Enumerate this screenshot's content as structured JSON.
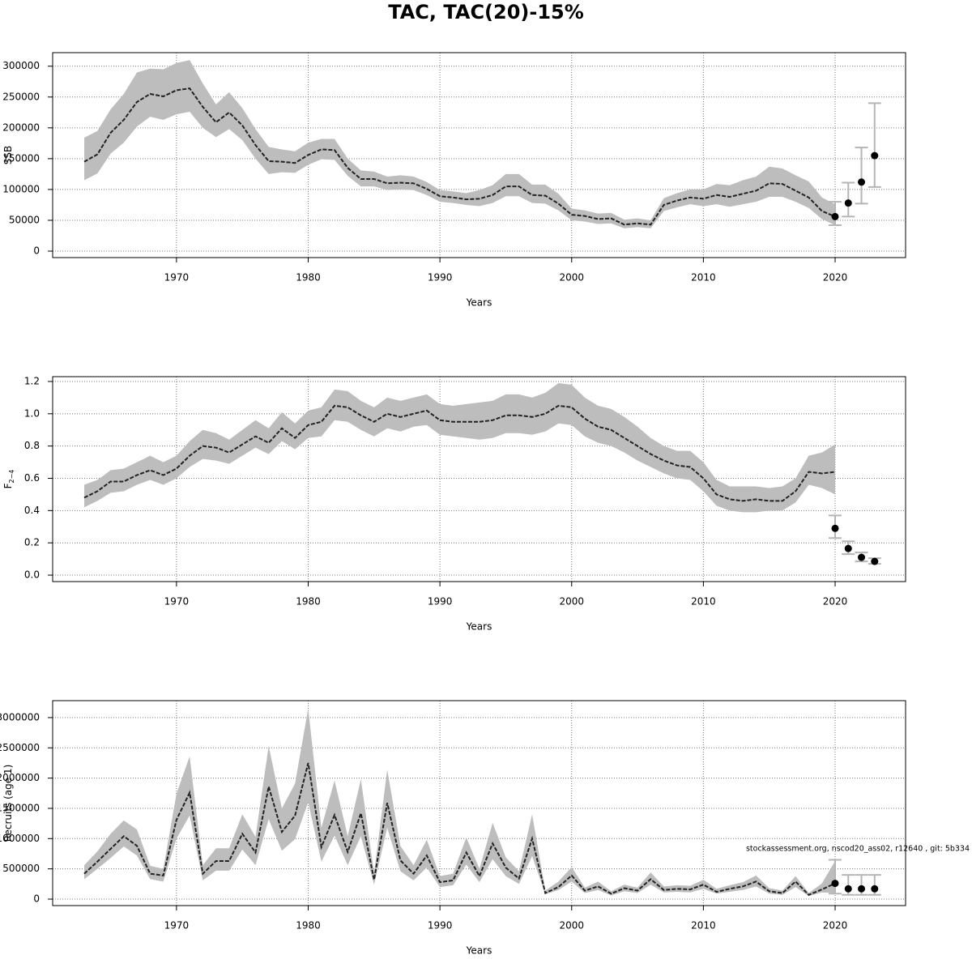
{
  "title": "TAC, TAC(20)-15%",
  "footnote": "stockassessment.org, nscod20_ass02, r12640 , git: 5b334",
  "chart_data": [
    {
      "type": "line",
      "ylabel": "SSB",
      "xlabel": "Years",
      "x": [
        1963,
        1964,
        1965,
        1966,
        1967,
        1968,
        1969,
        1970,
        1971,
        1972,
        1973,
        1974,
        1975,
        1976,
        1977,
        1978,
        1979,
        1980,
        1981,
        1982,
        1983,
        1984,
        1985,
        1986,
        1987,
        1988,
        1989,
        1990,
        1991,
        1992,
        1993,
        1994,
        1995,
        1996,
        1997,
        1998,
        1999,
        2000,
        2001,
        2002,
        2003,
        2004,
        2005,
        2006,
        2007,
        2008,
        2009,
        2010,
        2011,
        2012,
        2013,
        2014,
        2015,
        2016,
        2017,
        2018,
        2019,
        2020
      ],
      "values": [
        145000,
        157000,
        192000,
        213000,
        242000,
        255000,
        251000,
        261000,
        264000,
        234000,
        209000,
        225000,
        204000,
        172000,
        146000,
        145000,
        143000,
        156000,
        165000,
        164000,
        135000,
        117000,
        117000,
        110000,
        111000,
        110000,
        101000,
        89000,
        87000,
        84000,
        85000,
        91000,
        105000,
        105000,
        91000,
        90000,
        77000,
        59000,
        57000,
        52000,
        53000,
        43000,
        45000,
        43000,
        75000,
        82000,
        87000,
        85000,
        91000,
        88000,
        93000,
        98000,
        110000,
        109000,
        98000,
        87000,
        65000,
        56000
      ],
      "lower": [
        115000,
        126000,
        158000,
        176000,
        202000,
        218000,
        213000,
        222000,
        226000,
        200000,
        185000,
        198000,
        180000,
        150000,
        125000,
        128000,
        127000,
        140000,
        149000,
        148000,
        122000,
        105000,
        105000,
        99000,
        100000,
        99000,
        91000,
        80000,
        78000,
        75000,
        73000,
        78000,
        89000,
        89000,
        78000,
        77000,
        66000,
        50000,
        48000,
        44000,
        45000,
        37000,
        39000,
        37000,
        65000,
        71000,
        76000,
        73000,
        76000,
        72000,
        76000,
        80000,
        88000,
        88000,
        80000,
        70000,
        52000,
        42000
      ],
      "upper": [
        184000,
        195000,
        230000,
        255000,
        290000,
        296000,
        295000,
        305000,
        310000,
        272000,
        238000,
        258000,
        232000,
        198000,
        169000,
        165000,
        162000,
        176000,
        182000,
        182000,
        150000,
        131000,
        129000,
        121000,
        123000,
        121000,
        112000,
        99000,
        97000,
        94000,
        99000,
        107000,
        125000,
        125000,
        108000,
        108000,
        93000,
        69000,
        66000,
        61000,
        62000,
        51000,
        53000,
        50000,
        86000,
        94000,
        100000,
        100000,
        109000,
        107000,
        115000,
        121000,
        137000,
        134000,
        123000,
        113000,
        87000,
        76000
      ],
      "forecast": {
        "x": [
          2020,
          2021,
          2022,
          2023
        ],
        "values": [
          56000,
          78000,
          112000,
          155000
        ],
        "lower": [
          42000,
          56000,
          77000,
          104000
        ],
        "upper": [
          80000,
          111000,
          168000,
          240000
        ]
      },
      "xlim": [
        1960.6,
        2025.35
      ],
      "xticks": [
        1970,
        1980,
        1990,
        2000,
        2010,
        2020
      ],
      "ylim": [
        -10500,
        322000
      ],
      "yticks": [
        0,
        50000,
        100000,
        150000,
        200000,
        250000,
        300000
      ],
      "grid": true,
      "line_color": "#222222",
      "band_color": "#bdbdbd",
      "point_color": "#000000",
      "errorbar_color": "#b5b5b5"
    },
    {
      "type": "line",
      "ylabel": "F",
      "ylabel_subscript": "2−4",
      "xlabel": "Years",
      "x": [
        1963,
        1964,
        1965,
        1966,
        1967,
        1968,
        1969,
        1970,
        1971,
        1972,
        1973,
        1974,
        1975,
        1976,
        1977,
        1978,
        1979,
        1980,
        1981,
        1982,
        1983,
        1984,
        1985,
        1986,
        1987,
        1988,
        1989,
        1990,
        1991,
        1992,
        1993,
        1994,
        1995,
        1996,
        1997,
        1998,
        1999,
        2000,
        2001,
        2002,
        2003,
        2004,
        2005,
        2006,
        2007,
        2008,
        2009,
        2010,
        2011,
        2012,
        2013,
        2014,
        2015,
        2016,
        2017,
        2018,
        2019,
        2020
      ],
      "values": [
        0.48,
        0.52,
        0.58,
        0.58,
        0.62,
        0.65,
        0.62,
        0.66,
        0.74,
        0.8,
        0.79,
        0.76,
        0.81,
        0.86,
        0.82,
        0.91,
        0.85,
        0.93,
        0.95,
        1.05,
        1.04,
        0.99,
        0.95,
        1.0,
        0.98,
        1.0,
        1.02,
        0.96,
        0.95,
        0.95,
        0.95,
        0.96,
        0.99,
        0.99,
        0.98,
        1.0,
        1.05,
        1.04,
        0.97,
        0.92,
        0.9,
        0.85,
        0.8,
        0.75,
        0.71,
        0.68,
        0.67,
        0.6,
        0.5,
        0.47,
        0.46,
        0.47,
        0.46,
        0.46,
        0.52,
        0.64,
        0.63,
        0.64
      ],
      "lower": [
        0.42,
        0.46,
        0.51,
        0.52,
        0.56,
        0.59,
        0.56,
        0.6,
        0.67,
        0.72,
        0.71,
        0.69,
        0.74,
        0.79,
        0.75,
        0.83,
        0.78,
        0.85,
        0.86,
        0.96,
        0.95,
        0.9,
        0.86,
        0.91,
        0.89,
        0.92,
        0.93,
        0.87,
        0.86,
        0.85,
        0.84,
        0.85,
        0.88,
        0.88,
        0.87,
        0.89,
        0.94,
        0.93,
        0.86,
        0.82,
        0.8,
        0.76,
        0.71,
        0.67,
        0.63,
        0.6,
        0.59,
        0.52,
        0.43,
        0.4,
        0.39,
        0.39,
        0.4,
        0.4,
        0.45,
        0.56,
        0.54,
        0.5
      ],
      "upper": [
        0.56,
        0.59,
        0.65,
        0.66,
        0.7,
        0.74,
        0.7,
        0.74,
        0.83,
        0.9,
        0.88,
        0.84,
        0.9,
        0.96,
        0.91,
        1.01,
        0.94,
        1.02,
        1.04,
        1.15,
        1.14,
        1.08,
        1.04,
        1.1,
        1.08,
        1.1,
        1.12,
        1.06,
        1.05,
        1.06,
        1.07,
        1.08,
        1.12,
        1.12,
        1.1,
        1.13,
        1.19,
        1.18,
        1.1,
        1.05,
        1.03,
        0.98,
        0.92,
        0.85,
        0.8,
        0.77,
        0.77,
        0.7,
        0.59,
        0.55,
        0.55,
        0.55,
        0.54,
        0.55,
        0.6,
        0.74,
        0.76,
        0.81
      ],
      "forecast": {
        "x": [
          2020,
          2021,
          2022,
          2023
        ],
        "values": [
          0.29,
          0.165,
          0.11,
          0.085
        ],
        "lower": [
          0.23,
          0.13,
          0.085,
          0.07
        ],
        "upper": [
          0.37,
          0.21,
          0.14,
          0.105
        ]
      },
      "xlim": [
        1960.6,
        2025.35
      ],
      "xticks": [
        1970,
        1980,
        1990,
        2000,
        2010,
        2020
      ],
      "ylim": [
        -0.04,
        1.23
      ],
      "yticks": [
        {
          "value": 0,
          "label": "0.0"
        },
        {
          "value": 0.2,
          "label": "0.2"
        },
        {
          "value": 0.4,
          "label": "0.4"
        },
        {
          "value": 0.6,
          "label": "0.6"
        },
        {
          "value": 0.8,
          "label": "0.8"
        },
        {
          "value": 1,
          "label": "1.0"
        },
        {
          "value": 1.2,
          "label": "1.2"
        }
      ],
      "grid": true,
      "line_color": "#222222",
      "band_color": "#bdbdbd",
      "point_color": "#000000",
      "errorbar_color": "#b5b5b5"
    },
    {
      "type": "line",
      "ylabel": "Recruits (age 1)",
      "xlabel": "Years",
      "x": [
        1963,
        1964,
        1965,
        1966,
        1967,
        1968,
        1969,
        1970,
        1971,
        1972,
        1973,
        1974,
        1975,
        1976,
        1977,
        1978,
        1979,
        1980,
        1981,
        1982,
        1983,
        1984,
        1985,
        1986,
        1987,
        1988,
        1989,
        1990,
        1991,
        1992,
        1993,
        1994,
        1995,
        1996,
        1997,
        1998,
        1999,
        2000,
        2001,
        2002,
        2003,
        2004,
        2005,
        2006,
        2007,
        2008,
        2009,
        2010,
        2011,
        2012,
        2013,
        2014,
        2015,
        2016,
        2017,
        2018,
        2019,
        2020
      ],
      "values": [
        420000,
        620000,
        830000,
        1040000,
        880000,
        420000,
        390000,
        1310000,
        1760000,
        420000,
        630000,
        630000,
        1080000,
        770000,
        1860000,
        1110000,
        1380000,
        2250000,
        860000,
        1390000,
        780000,
        1420000,
        320000,
        1590000,
        640000,
        420000,
        720000,
        280000,
        310000,
        770000,
        380000,
        920000,
        520000,
        340000,
        1000000,
        100000,
        200000,
        390000,
        140000,
        210000,
        90000,
        180000,
        140000,
        330000,
        150000,
        170000,
        160000,
        240000,
        120000,
        170000,
        210000,
        290000,
        130000,
        100000,
        290000,
        70000,
        160000,
        260000
      ],
      "lower": [
        330000,
        500000,
        680000,
        870000,
        720000,
        330000,
        290000,
        1000000,
        1380000,
        310000,
        470000,
        470000,
        820000,
        560000,
        1320000,
        800000,
        990000,
        1600000,
        620000,
        1050000,
        560000,
        1040000,
        240000,
        1180000,
        460000,
        310000,
        520000,
        200000,
        230000,
        570000,
        280000,
        660000,
        380000,
        250000,
        710000,
        80000,
        150000,
        290000,
        100000,
        150000,
        60000,
        130000,
        100000,
        240000,
        110000,
        120000,
        110000,
        170000,
        90000,
        120000,
        150000,
        210000,
        90000,
        70000,
        200000,
        50000,
        110000,
        100000
      ],
      "upper": [
        560000,
        790000,
        1080000,
        1300000,
        1150000,
        550000,
        500000,
        1740000,
        2360000,
        560000,
        840000,
        840000,
        1400000,
        1030000,
        2530000,
        1500000,
        1910000,
        3150000,
        1180000,
        1960000,
        1040000,
        1980000,
        430000,
        2140000,
        880000,
        560000,
        980000,
        380000,
        420000,
        1020000,
        500000,
        1260000,
        690000,
        460000,
        1400000,
        140000,
        290000,
        530000,
        190000,
        290000,
        130000,
        240000,
        190000,
        440000,
        210000,
        230000,
        220000,
        320000,
        170000,
        230000,
        280000,
        390000,
        180000,
        140000,
        380000,
        100000,
        260000,
        630000
      ],
      "forecast": {
        "x": [
          2020,
          2021,
          2022,
          2023
        ],
        "values": [
          260000,
          170000,
          170000,
          170000
        ],
        "lower": [
          90000,
          70000,
          70000,
          70000
        ],
        "upper": [
          650000,
          400000,
          400000,
          400000
        ]
      },
      "xlim": [
        1960.6,
        2025.35
      ],
      "xticks": [
        1970,
        1980,
        1990,
        2000,
        2010,
        2020
      ],
      "ylim": [
        -107000,
        3280000
      ],
      "yticks": [
        0,
        500000,
        1000000,
        1500000,
        2000000,
        2500000,
        3000000
      ],
      "grid": true,
      "line_color": "#222222",
      "band_color": "#bdbdbd",
      "point_color": "#000000",
      "errorbar_color": "#b5b5b5"
    }
  ]
}
